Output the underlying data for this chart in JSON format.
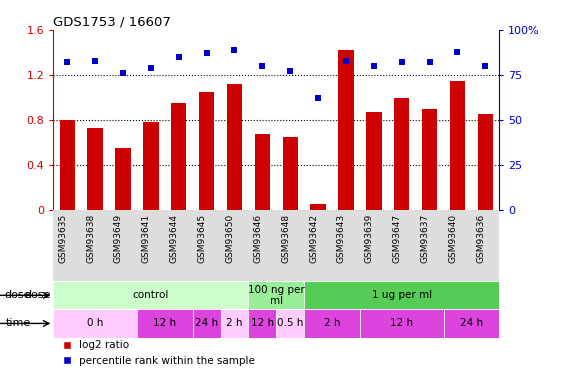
{
  "title": "GDS1753 / 16607",
  "samples": [
    "GSM93635",
    "GSM93638",
    "GSM93649",
    "GSM93641",
    "GSM93644",
    "GSM93645",
    "GSM93650",
    "GSM93646",
    "GSM93648",
    "GSM93642",
    "GSM93643",
    "GSM93639",
    "GSM93647",
    "GSM93637",
    "GSM93640",
    "GSM93636"
  ],
  "log2_ratio": [
    0.8,
    0.73,
    0.55,
    0.78,
    0.95,
    1.05,
    1.12,
    0.68,
    0.65,
    0.05,
    1.42,
    0.87,
    1.0,
    0.9,
    1.15,
    0.85
  ],
  "percentile": [
    82,
    83,
    76,
    79,
    85,
    87,
    89,
    80,
    77,
    62,
    83,
    80,
    82,
    82,
    88,
    80
  ],
  "bar_color": "#cc0000",
  "dot_color": "#0000cc",
  "ylim_left": [
    0,
    1.6
  ],
  "ylim_right": [
    0,
    100
  ],
  "yticks_left": [
    0,
    0.4,
    0.8,
    1.2,
    1.6
  ],
  "yticks_right": [
    0,
    25,
    50,
    75,
    100
  ],
  "ytick_labels_left": [
    "0",
    "0.4",
    "0.8",
    "1.2",
    "1.6"
  ],
  "ytick_labels_right": [
    "0",
    "25",
    "50",
    "75",
    "100%"
  ],
  "dose_defs": [
    {
      "label": "control",
      "start": 0,
      "end": 6,
      "color": "#ccffcc"
    },
    {
      "label": "100 ng per\nml",
      "start": 7,
      "end": 8,
      "color": "#99ee99"
    },
    {
      "label": "1 ug per ml",
      "start": 9,
      "end": 15,
      "color": "#55cc55"
    }
  ],
  "time_defs": [
    {
      "label": "0 h",
      "start": 0,
      "end": 2,
      "color": "#ffccff"
    },
    {
      "label": "12 h",
      "start": 3,
      "end": 4,
      "color": "#dd44dd"
    },
    {
      "label": "24 h",
      "start": 5,
      "end": 5,
      "color": "#dd44dd"
    },
    {
      "label": "2 h",
      "start": 6,
      "end": 6,
      "color": "#ffccff"
    },
    {
      "label": "12 h",
      "start": 7,
      "end": 7,
      "color": "#dd44dd"
    },
    {
      "label": "0.5 h",
      "start": 8,
      "end": 8,
      "color": "#ffccff"
    },
    {
      "label": "2 h",
      "start": 9,
      "end": 10,
      "color": "#dd44dd"
    },
    {
      "label": "12 h",
      "start": 11,
      "end": 13,
      "color": "#dd44dd"
    },
    {
      "label": "24 h",
      "start": 14,
      "end": 15,
      "color": "#dd44dd"
    }
  ],
  "legend_red": "log2 ratio",
  "legend_blue": "percentile rank within the sample",
  "dose_label": "dose",
  "time_label": "time",
  "bar_width": 0.55
}
